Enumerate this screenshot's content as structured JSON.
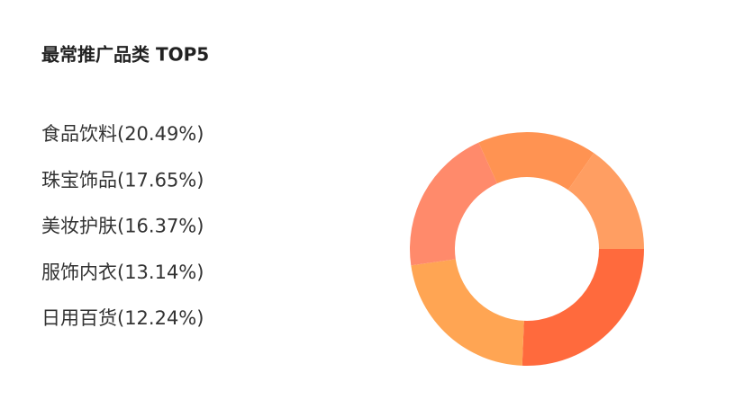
{
  "chart_data": {
    "type": "donut",
    "title": "最常推广品类 TOP5",
    "categories": [
      "食品饮料",
      "珠宝饰品",
      "美妆护肤",
      "服饰内衣",
      "日用百货"
    ],
    "values": [
      20.49,
      17.65,
      16.37,
      13.14,
      12.24
    ],
    "value_labels": [
      "(20.49%)",
      "(17.65%)",
      "(16.37%)",
      "(13.14%)",
      "(12.24%)"
    ],
    "colors": [
      "#ff6a3d",
      "#ffa553",
      "#ff8a6b",
      "#ff9352",
      "#ff9e62"
    ]
  }
}
